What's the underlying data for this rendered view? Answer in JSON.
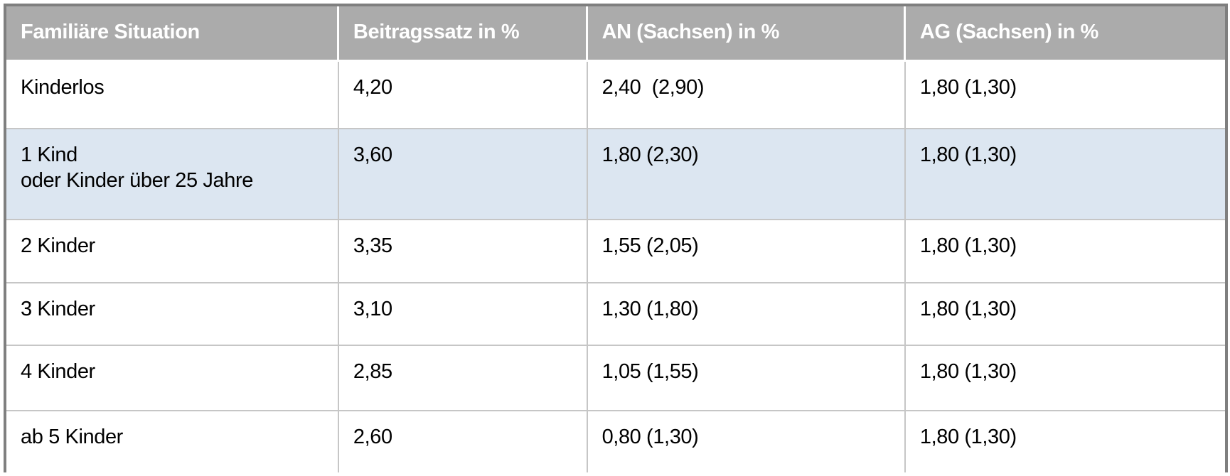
{
  "table": {
    "columns": [
      {
        "label": "Familiäre Situation"
      },
      {
        "label": "Beitragssatz in %"
      },
      {
        "label": "AN (Sachsen) in %"
      },
      {
        "label": "AG (Sachsen) in %"
      }
    ],
    "rows": [
      {
        "highlighted": false,
        "cells": [
          "Kinderlos",
          "4,20",
          "2,40  (2,90)",
          "1,80 (1,30)"
        ]
      },
      {
        "highlighted": true,
        "cells": [
          "1 Kind\noder Kinder über 25 Jahre",
          "3,60",
          "1,80 (2,30)",
          "1,80 (1,30)"
        ]
      },
      {
        "highlighted": false,
        "cells": [
          "2 Kinder",
          "3,35",
          "1,55 (2,05)",
          "1,80 (1,30)"
        ]
      },
      {
        "highlighted": false,
        "cells": [
          "3 Kinder",
          "3,10",
          "1,30 (1,80)",
          "1,80 (1,30)"
        ]
      },
      {
        "highlighted": false,
        "cells": [
          "4 Kinder",
          "2,85",
          "1,05 (1,55)",
          "1,80 (1,30)"
        ]
      },
      {
        "highlighted": false,
        "cells": [
          "ab 5 Kinder",
          "2,60",
          "0,80 (1,30)",
          "1,80 (1,30)"
        ]
      }
    ]
  },
  "colors": {
    "header_bg": "#ababab",
    "header_text": "#ffffff",
    "highlight_row_bg": "#dce6f1",
    "grid_line": "#c6c6c6",
    "outer_border": "#7f7f7f",
    "body_text": "#000000"
  }
}
